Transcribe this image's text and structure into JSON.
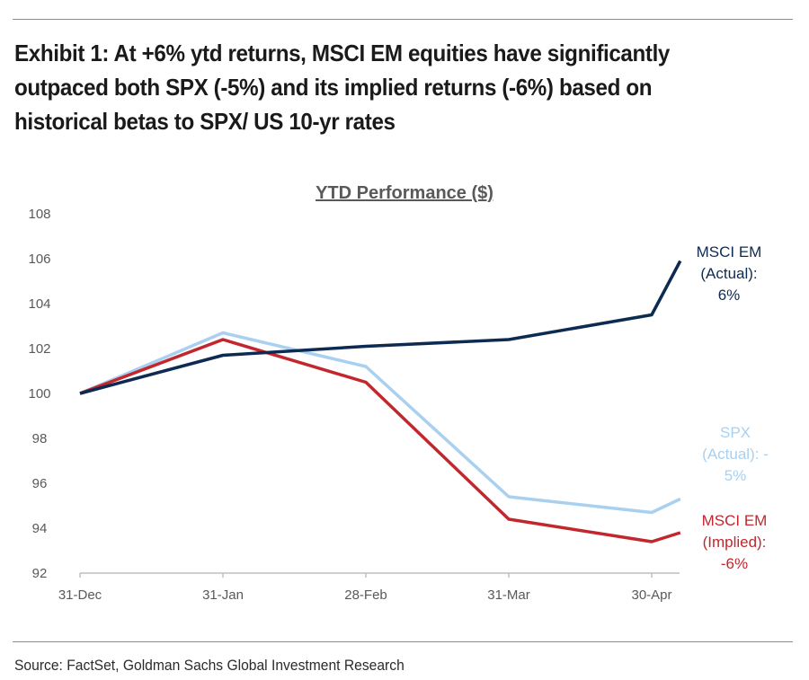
{
  "header": {
    "title": "Exhibit 1: At +6% ytd returns, MSCI EM equities have significantly outpaced both SPX (-5%) and its implied returns (-6%) based on historical betas to SPX/ US 10-yr rates"
  },
  "footer": {
    "source": "Source: FactSet, Goldman Sachs Global Investment Research"
  },
  "colors": {
    "msci_actual": "#0d2b52",
    "spx_actual": "#a9d0ef",
    "msci_implied": "#c1272d",
    "axis_text": "#595959",
    "axis_line": "#bfbfbf"
  },
  "chart_data": {
    "type": "line",
    "title": "YTD Performance ($)",
    "xlabel": "",
    "ylabel": "",
    "ylim": [
      92,
      108
    ],
    "yticks": [
      92,
      94,
      96,
      98,
      100,
      102,
      104,
      106,
      108
    ],
    "x_tick_labels": [
      "31-Dec",
      "31-Jan",
      "28-Feb",
      "31-Mar",
      "30-Apr"
    ],
    "x_domain": [
      0,
      4.2
    ],
    "grid": false,
    "series": [
      {
        "name": "MSCI EM (Actual): 6%",
        "label_lines": [
          "MSCI EM",
          "(Actual):",
          "6%"
        ],
        "color": "#0d2b52",
        "x": [
          0,
          1,
          2,
          3,
          4,
          4.2
        ],
        "values": [
          100,
          101.7,
          102.1,
          102.4,
          103.5,
          105.9
        ]
      },
      {
        "name": "SPX (Actual): -5%",
        "label_lines": [
          "SPX",
          "(Actual): -",
          "5%"
        ],
        "color": "#a9d0ef",
        "x": [
          0,
          1,
          2,
          3,
          4,
          4.2
        ],
        "values": [
          100,
          102.7,
          101.2,
          95.4,
          94.7,
          95.3
        ]
      },
      {
        "name": "MSCI EM (Implied): -6%",
        "label_lines": [
          "MSCI EM",
          "(Implied):",
          "-6%"
        ],
        "color": "#c1272d",
        "x": [
          0,
          1,
          2,
          3,
          4,
          4.2
        ],
        "values": [
          100,
          102.4,
          100.5,
          94.4,
          93.4,
          93.8
        ]
      }
    ]
  }
}
